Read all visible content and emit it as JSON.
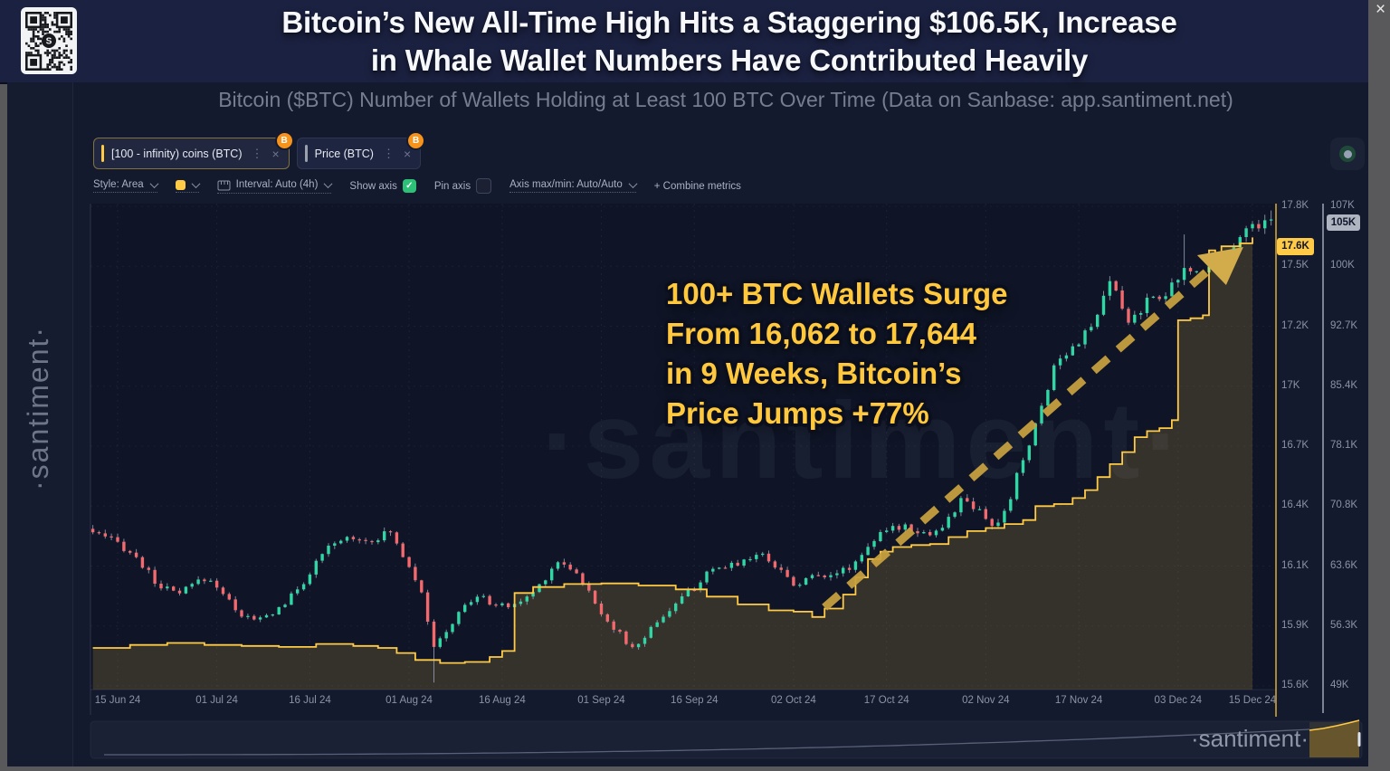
{
  "window": {
    "close_glyph": "×"
  },
  "header": {
    "title_line1": "Bitcoin’s New All-Time High Hits a Staggering $106.5K, Increase",
    "title_line2": "in Whale Wallet Numbers Have Contributed Heavily"
  },
  "subtitle": "Bitcoin ($BTC) Number of Wallets Holding at Least 100 BTC Over Time (Data on Sanbase: app.santiment.net)",
  "watermarks": {
    "left_vertical": "·santiment·",
    "center": "·santiment·",
    "bottom_right": "·santiment·"
  },
  "metric_chips": [
    {
      "label": "[100 - infinity) coins (BTC)",
      "accent": "#ffcb47",
      "badge": "B",
      "menu_icon": "⋮",
      "close_icon": "×",
      "active": true
    },
    {
      "label": "Price (BTC)",
      "accent": "#9aa0ad",
      "badge": "B",
      "menu_icon": "⋮",
      "close_icon": "×",
      "active": false
    }
  ],
  "toolbar": {
    "style_label": "Style: Area",
    "swatch_color": "#ffcb47",
    "interval_label": "Interval: Auto (4h)",
    "show_axis_label": "Show axis",
    "show_axis_checked": true,
    "check_glyph": "✓",
    "pin_axis_label": "Pin axis",
    "pin_axis_checked": false,
    "axis_maxmin_label": "Axis max/min: Auto/Auto",
    "combine_label": "+ Combine metrics"
  },
  "annotation": {
    "color": "#ffc83d",
    "lines": [
      "100+ BTC Wallets Surge",
      "From 16,062 to 17,644",
      "in 9 Weeks, Bitcoin’s",
      "Price Jumps +77%"
    ]
  },
  "axes": {
    "wallet_badge": "17.6K",
    "price_badge": "105K",
    "wallet_axis_color": "#f0bd3f",
    "price_axis_color": "#cfd4e0"
  },
  "chart_data": {
    "type": "mixed",
    "title": "Bitcoin ($BTC) Number of Wallets Holding at Least 100 BTC Over Time",
    "x": {
      "unit": "days since 15 Jun 24",
      "start": "2024-06-15",
      "end": "2024-12-15",
      "tick_days": [
        0,
        16,
        31,
        47,
        62,
        78,
        93,
        109,
        124,
        140,
        155,
        171,
        183
      ],
      "tick_labels": [
        "15 Jun 24",
        "01 Jul 24",
        "16 Jul 24",
        "01 Aug 24",
        "16 Aug 24",
        "01 Sep 24",
        "16 Sep 24",
        "02 Oct 24",
        "17 Oct 24",
        "02 Nov 24",
        "17 Nov 24",
        "03 Dec 24",
        "15 Dec 24"
      ]
    },
    "y_axes": [
      {
        "name": "wallets-100-plus",
        "color": "#ffcb47",
        "tick_labels": [
          "17.8K",
          "17.5K",
          "17.2K",
          "17K",
          "16.7K",
          "16.4K",
          "16.1K",
          "15.9K",
          "15.6K"
        ],
        "tick_values": [
          17800,
          17500,
          17200,
          17000,
          16700,
          16400,
          16100,
          15900,
          15600
        ],
        "badge_value": "17.6K"
      },
      {
        "name": "price-usd",
        "color": "#cfd4e0",
        "tick_labels": [
          "107K",
          "100K",
          "92.7K",
          "85.4K",
          "78.1K",
          "70.8K",
          "63.6K",
          "56.3K",
          "49K"
        ],
        "tick_values": [
          107000,
          100000,
          92700,
          85400,
          78100,
          70800,
          63600,
          56300,
          49000
        ],
        "badge_value": "105K"
      }
    ],
    "series": [
      {
        "name": "Price (BTC)",
        "type": "candlestick",
        "unit": "kUSD",
        "color_up": "#2fd7a4",
        "color_down": "#f3696e",
        "wick_color": "#9aa4ba",
        "anchors_day_close": [
          [
            -5,
            68.0
          ],
          [
            -2,
            66.8
          ],
          [
            0,
            66.3
          ],
          [
            2,
            65.2
          ],
          [
            4,
            63.6
          ],
          [
            6,
            61.6
          ],
          [
            8,
            60.6
          ],
          [
            10,
            60.1
          ],
          [
            12,
            61.2
          ],
          [
            14,
            62.0
          ],
          [
            16,
            61.2
          ],
          [
            18,
            59.2
          ],
          [
            20,
            57.6
          ],
          [
            22,
            56.9
          ],
          [
            24,
            57.4
          ],
          [
            26,
            58.4
          ],
          [
            28,
            59.8
          ],
          [
            30,
            61.6
          ],
          [
            32,
            63.8
          ],
          [
            34,
            65.6
          ],
          [
            36,
            66.6
          ],
          [
            38,
            67.1
          ],
          [
            40,
            66.6
          ],
          [
            42,
            67.0
          ],
          [
            44,
            67.6
          ],
          [
            45,
            66.2
          ],
          [
            47,
            63.6
          ],
          [
            49,
            60.6
          ],
          [
            51,
            53.4
          ],
          [
            52,
            54.6
          ],
          [
            54,
            56.6
          ],
          [
            56,
            58.8
          ],
          [
            58,
            59.8
          ],
          [
            60,
            59.2
          ],
          [
            62,
            58.6
          ],
          [
            64,
            58.9
          ],
          [
            66,
            59.6
          ],
          [
            68,
            61.2
          ],
          [
            70,
            63.2
          ],
          [
            71,
            64.1
          ],
          [
            73,
            63.4
          ],
          [
            75,
            61.6
          ],
          [
            77,
            58.9
          ],
          [
            79,
            57.0
          ],
          [
            81,
            55.2
          ],
          [
            83,
            53.4
          ],
          [
            85,
            55.0
          ],
          [
            87,
            56.9
          ],
          [
            89,
            58.2
          ],
          [
            91,
            59.6
          ],
          [
            93,
            61.0
          ],
          [
            95,
            62.4
          ],
          [
            97,
            63.1
          ],
          [
            99,
            63.7
          ],
          [
            101,
            64.2
          ],
          [
            103,
            65.0
          ],
          [
            105,
            64.4
          ],
          [
            107,
            62.9
          ],
          [
            109,
            61.3
          ],
          [
            111,
            61.9
          ],
          [
            113,
            62.4
          ],
          [
            115,
            62.7
          ],
          [
            117,
            62.9
          ],
          [
            119,
            64.0
          ],
          [
            121,
            66.1
          ],
          [
            123,
            67.2
          ],
          [
            125,
            68.0
          ],
          [
            127,
            68.5
          ],
          [
            129,
            67.8
          ],
          [
            131,
            67.4
          ],
          [
            133,
            68.1
          ],
          [
            135,
            70.2
          ],
          [
            136,
            71.9
          ],
          [
            137,
            71.0
          ],
          [
            139,
            69.9
          ],
          [
            141,
            68.3
          ],
          [
            142,
            68.9
          ],
          [
            144,
            71.2
          ],
          [
            145,
            74.9
          ],
          [
            147,
            78.0
          ],
          [
            149,
            83.0
          ],
          [
            151,
            87.6
          ],
          [
            153,
            89.6
          ],
          [
            155,
            90.8
          ],
          [
            157,
            92.3
          ],
          [
            159,
            95.6
          ],
          [
            160,
            97.9
          ],
          [
            161,
            96.4
          ],
          [
            163,
            92.9
          ],
          [
            165,
            94.6
          ],
          [
            167,
            96.1
          ],
          [
            169,
            96.6
          ],
          [
            171,
            97.8
          ],
          [
            172,
            99.3
          ],
          [
            174,
            99.0
          ],
          [
            176,
            100.1
          ],
          [
            178,
            101.1
          ],
          [
            180,
            102.6
          ],
          [
            182,
            104.1
          ],
          [
            183,
            104.7
          ],
          [
            185,
            105.1
          ],
          [
            187,
            105.6
          ]
        ],
        "key_wicks": [
          {
            "day": 51,
            "low": 49.4
          },
          {
            "day": 172,
            "high": 103.6
          },
          {
            "day": 187,
            "high": 106.5
          }
        ],
        "all_time_high": 106.5
      },
      {
        "name": "[100 - infinity) coins (BTC)",
        "type": "area",
        "unit": "wallets",
        "color": "#ffcb47",
        "fill": "rgba(255,201,77,0.16)",
        "points_day_value": [
          [
            -4,
            15790
          ],
          [
            2,
            15805
          ],
          [
            8,
            15815
          ],
          [
            14,
            15805
          ],
          [
            20,
            15800
          ],
          [
            26,
            15795
          ],
          [
            32,
            15810
          ],
          [
            38,
            15800
          ],
          [
            42,
            15790
          ],
          [
            45,
            15765
          ],
          [
            48,
            15730
          ],
          [
            52,
            15715
          ],
          [
            56,
            15720
          ],
          [
            60,
            15745
          ],
          [
            62,
            15775
          ],
          [
            64,
            16010
          ],
          [
            67,
            16030
          ],
          [
            72,
            16040
          ],
          [
            78,
            16042
          ],
          [
            84,
            16035
          ],
          [
            90,
            16022
          ],
          [
            95,
            15998
          ],
          [
            100,
            15972
          ],
          [
            105,
            15952
          ],
          [
            109,
            15948
          ],
          [
            112,
            15930
          ],
          [
            114,
            15958
          ],
          [
            117,
            16005
          ],
          [
            119,
            16062
          ],
          [
            121,
            16135
          ],
          [
            123,
            16172
          ],
          [
            125,
            16195
          ],
          [
            128,
            16205
          ],
          [
            131,
            16210
          ],
          [
            134,
            16245
          ],
          [
            137,
            16275
          ],
          [
            140,
            16290
          ],
          [
            143,
            16310
          ],
          [
            146,
            16330
          ],
          [
            148,
            16400
          ],
          [
            151,
            16410
          ],
          [
            154,
            16440
          ],
          [
            156,
            16480
          ],
          [
            158,
            16545
          ],
          [
            160,
            16610
          ],
          [
            162,
            16670
          ],
          [
            164,
            16745
          ],
          [
            166,
            16775
          ],
          [
            168,
            16790
          ],
          [
            170,
            16830
          ],
          [
            171,
            17230
          ],
          [
            173,
            17240
          ],
          [
            175,
            17255
          ],
          [
            176,
            17580
          ],
          [
            177,
            17545
          ],
          [
            178,
            17600
          ],
          [
            181,
            17615
          ],
          [
            183,
            17644
          ]
        ],
        "start_value": 16062,
        "end_value": 17644
      }
    ],
    "trend_arrow": {
      "style": "dashed",
      "color": "#c9a23f",
      "from_day": 114,
      "from_price_k": 58.5,
      "to_day": 177,
      "to_price_k": 100.0
    },
    "legend_position": "none",
    "grid": true
  }
}
